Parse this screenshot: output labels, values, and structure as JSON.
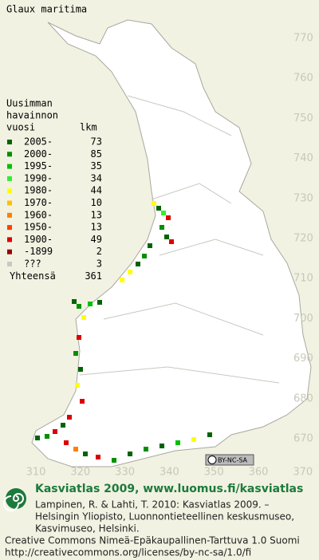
{
  "title": "Glaux maritima",
  "grid": {
    "north": [
      770,
      760,
      750,
      740,
      730,
      720,
      710,
      700,
      690,
      680,
      670
    ],
    "east": [
      310,
      320,
      330,
      340,
      350,
      360,
      370
    ]
  },
  "legend": {
    "heading": [
      "Uusimman",
      "havainnon",
      "vuosi"
    ],
    "count_heading": "lkm",
    "rows": [
      {
        "label": "2005-",
        "count": 73,
        "color": "#006400"
      },
      {
        "label": "2000-",
        "count": 85,
        "color": "#009000"
      },
      {
        "label": "1995-",
        "count": 35,
        "color": "#00c000"
      },
      {
        "label": "1990-",
        "count": 34,
        "color": "#30ee30"
      },
      {
        "label": "1980-",
        "count": 44,
        "color": "#ffff00"
      },
      {
        "label": "1970-",
        "count": 10,
        "color": "#ffc000"
      },
      {
        "label": "1960-",
        "count": 13,
        "color": "#ff8000"
      },
      {
        "label": "1950-",
        "count": 13,
        "color": "#ff4000"
      },
      {
        "label": "1900-",
        "count": 49,
        "color": "#dd0000"
      },
      {
        "label": "-1899",
        "count": 2,
        "color": "#990000"
      },
      {
        "label": "???",
        "count": 3,
        "color": "#c8c8c8"
      }
    ],
    "total_label": "Yhteensä",
    "total": 361
  },
  "badge": "BY-NC-SA",
  "footer": {
    "headline": "Kasviatlas 2009, www.luomus.fi/kasviatlas",
    "lines": [
      "Lampinen, R. & Lahti, T. 2010: Kasviatlas 2009. –",
      "Helsingin Yliopisto, Luonnontieteellinen keskusmuseo,",
      "Kasvimuseo, Helsinki.",
      "Creative Commons Nimeä-Epäkaupallinen-Tarttuva 1.0 Suomi",
      "http://creativecommons.org/licenses/by-nc-sa/1.0/fi"
    ]
  }
}
